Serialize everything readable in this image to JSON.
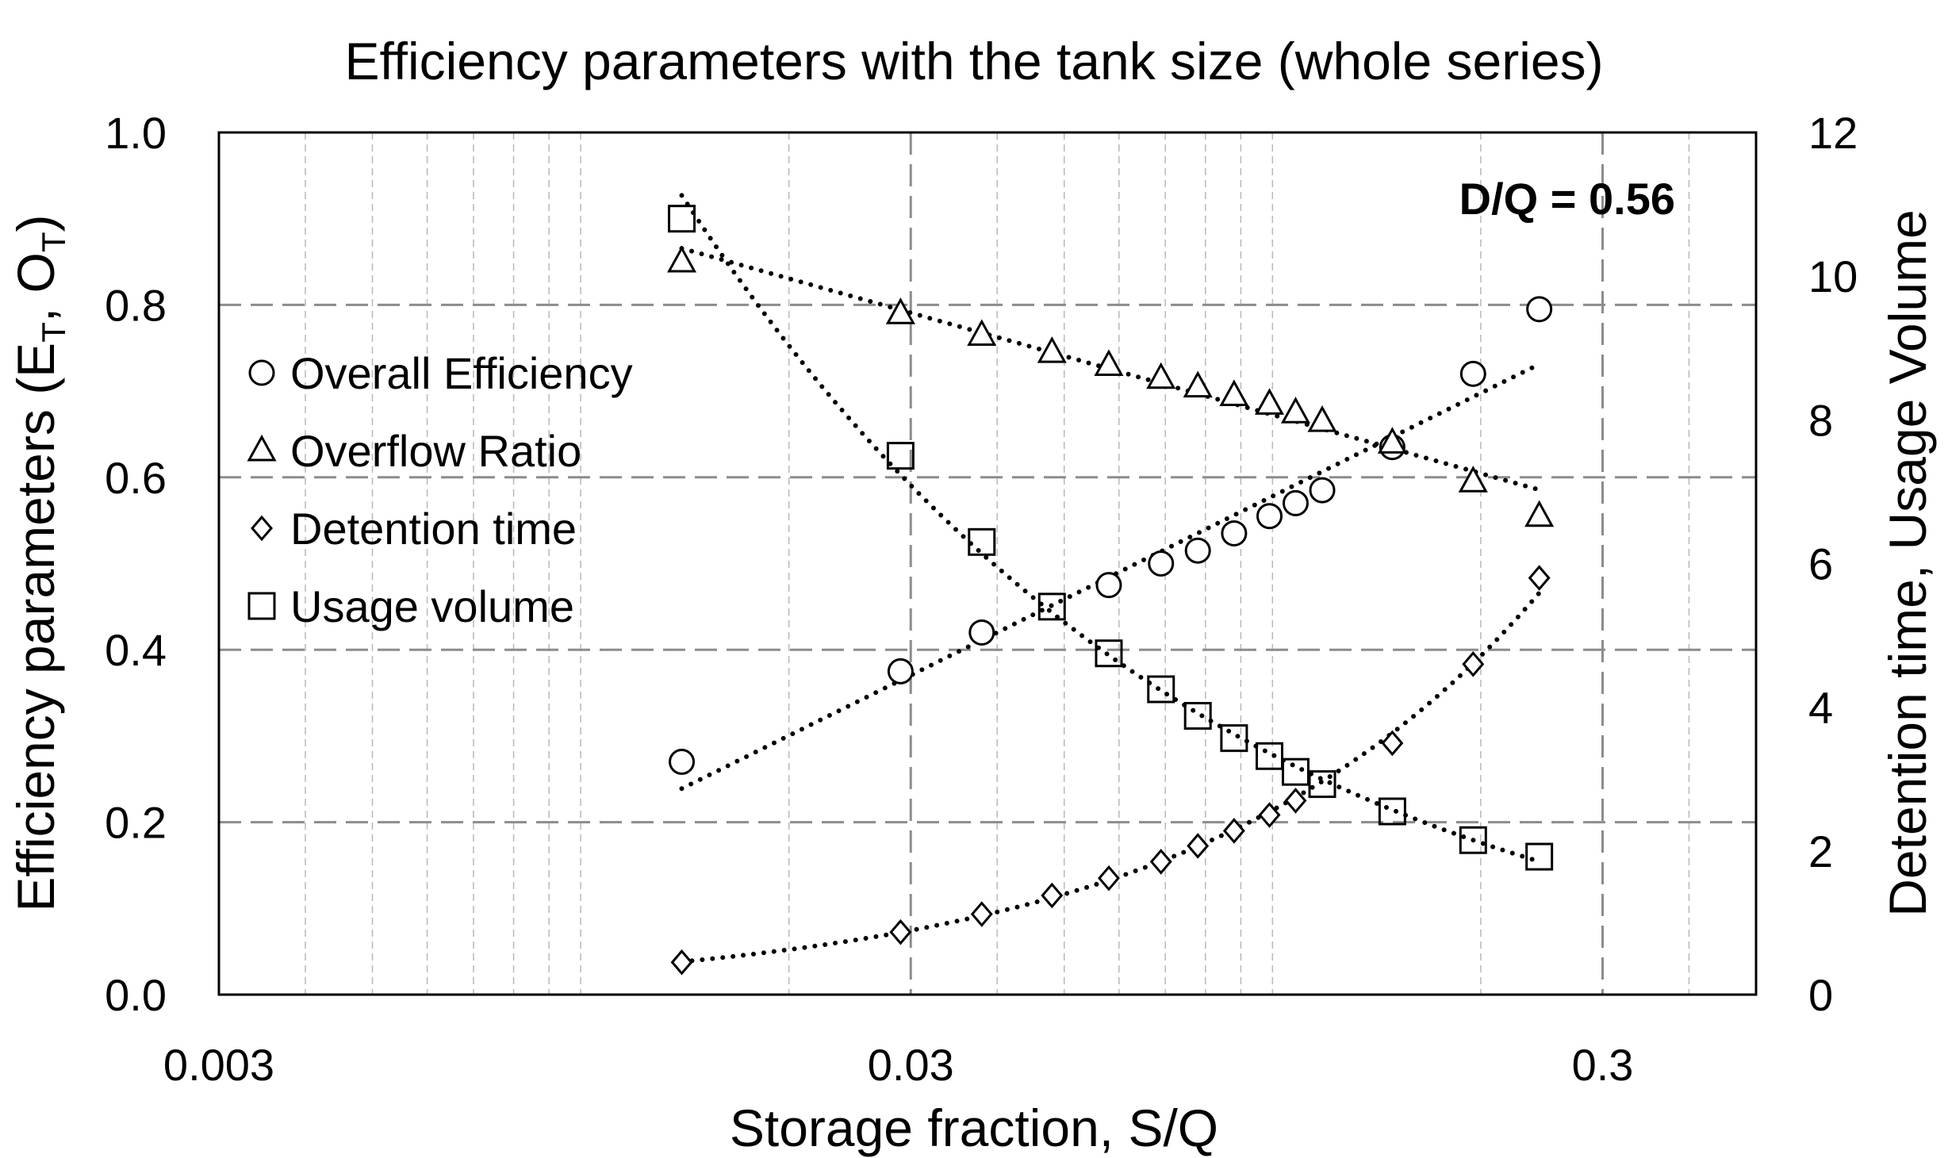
{
  "chart_data": {
    "type": "scatter",
    "title": "Efficiency parameters with the tank size (whole series)",
    "annotation": "D/Q = 0.56",
    "x_axis": {
      "label": "Storage fraction, S/Q",
      "scale": "log",
      "range": [
        0.003,
        0.5
      ],
      "ticks": [
        "0.003",
        "0.03",
        "0.3"
      ]
    },
    "y_axis_left": {
      "label_main": "Efficiency parameters (E",
      "label_sub1": "T",
      "label_mid": ", O",
      "label_sub2": "T",
      "label_end": ")",
      "range": [
        0,
        1
      ],
      "ticks": [
        "0.0",
        "0.2",
        "0.4",
        "0.6",
        "0.8",
        "1.0"
      ]
    },
    "y_axis_right": {
      "label": "Detention time, Usage Volume",
      "range": [
        0,
        12
      ],
      "ticks": [
        "0",
        "2",
        "4",
        "6",
        "8",
        "10",
        "12"
      ]
    },
    "grid": "dashed",
    "legend_position": "left",
    "series": [
      {
        "name": "Overall Efficiency",
        "marker": "circle",
        "axis": "left",
        "points": [
          [
            0.014,
            0.27
          ],
          [
            0.029,
            0.375
          ],
          [
            0.038,
            0.42
          ],
          [
            0.058,
            0.475
          ],
          [
            0.069,
            0.5
          ],
          [
            0.078,
            0.515
          ],
          [
            0.088,
            0.535
          ],
          [
            0.099,
            0.555
          ],
          [
            0.108,
            0.57
          ],
          [
            0.118,
            0.585
          ],
          [
            0.149,
            0.635
          ],
          [
            0.195,
            0.72
          ],
          [
            0.243,
            0.795
          ]
        ]
      },
      {
        "name": "Overflow Ratio",
        "marker": "triangle",
        "axis": "left",
        "points": [
          [
            0.014,
            0.85
          ],
          [
            0.029,
            0.79
          ],
          [
            0.038,
            0.765
          ],
          [
            0.048,
            0.745
          ],
          [
            0.058,
            0.73
          ],
          [
            0.069,
            0.715
          ],
          [
            0.078,
            0.705
          ],
          [
            0.088,
            0.695
          ],
          [
            0.099,
            0.685
          ],
          [
            0.108,
            0.675
          ],
          [
            0.118,
            0.665
          ],
          [
            0.149,
            0.64
          ],
          [
            0.195,
            0.595
          ],
          [
            0.243,
            0.555
          ]
        ]
      },
      {
        "name": "Detention time",
        "marker": "diamond",
        "axis": "right",
        "points": [
          [
            0.014,
            0.45
          ],
          [
            0.029,
            0.87
          ],
          [
            0.038,
            1.12
          ],
          [
            0.048,
            1.38
          ],
          [
            0.058,
            1.62
          ],
          [
            0.069,
            1.85
          ],
          [
            0.078,
            2.07
          ],
          [
            0.088,
            2.28
          ],
          [
            0.099,
            2.5
          ],
          [
            0.108,
            2.7
          ],
          [
            0.149,
            3.5
          ],
          [
            0.195,
            4.6
          ],
          [
            0.243,
            5.8
          ]
        ]
      },
      {
        "name": "Usage volume",
        "marker": "square",
        "axis": "right",
        "points": [
          [
            0.014,
            10.8
          ],
          [
            0.029,
            7.5
          ],
          [
            0.038,
            6.3
          ],
          [
            0.048,
            5.4
          ],
          [
            0.058,
            4.75
          ],
          [
            0.069,
            4.25
          ],
          [
            0.078,
            3.88
          ],
          [
            0.088,
            3.57
          ],
          [
            0.099,
            3.32
          ],
          [
            0.108,
            3.1
          ],
          [
            0.118,
            2.93
          ],
          [
            0.149,
            2.55
          ],
          [
            0.195,
            2.15
          ],
          [
            0.243,
            1.92
          ]
        ]
      }
    ]
  }
}
